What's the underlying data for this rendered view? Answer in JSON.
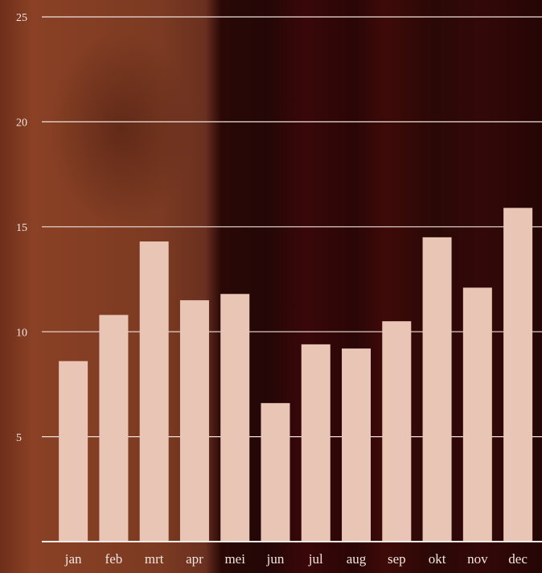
{
  "chart_data": {
    "type": "bar",
    "categories": [
      "jan",
      "feb",
      "mrt",
      "apr",
      "mei",
      "jun",
      "jul",
      "aug",
      "sep",
      "okt",
      "nov",
      "dec"
    ],
    "values": [
      8.6,
      10.8,
      14.3,
      11.5,
      11.8,
      6.6,
      9.4,
      9.2,
      10.5,
      14.5,
      12.1,
      15.9
    ],
    "color": "#e8c5b5",
    "ylim": [
      0,
      25
    ],
    "yticks": [
      5,
      10,
      15,
      20,
      25
    ],
    "grid": true
  }
}
